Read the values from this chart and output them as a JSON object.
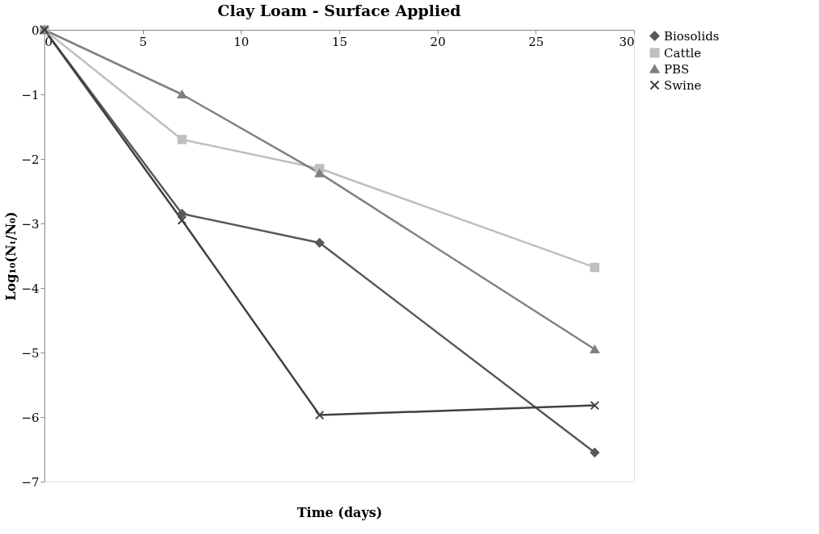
{
  "chart_data": {
    "type": "line",
    "title": "Clay Loam - Surface Applied",
    "xlabel": "Time (days)",
    "ylabel": "Log₁₀(Nₜ/N₀)",
    "x": [
      0,
      7,
      14,
      28
    ],
    "series": [
      {
        "name": "Biosolids",
        "color": "#595959",
        "marker": "diamond",
        "values": [
          0,
          -2.85,
          -3.3,
          -6.55
        ]
      },
      {
        "name": "Cattle",
        "color": "#bfbfbf",
        "marker": "square",
        "values": [
          0,
          -1.7,
          -2.15,
          -3.68
        ]
      },
      {
        "name": "PBS",
        "color": "#808080",
        "marker": "triangle",
        "values": [
          0,
          -1.0,
          -2.22,
          -4.95
        ]
      },
      {
        "name": "Swine",
        "color": "#404040",
        "marker": "cross",
        "values": [
          0,
          -2.95,
          -5.97,
          -5.82
        ]
      }
    ],
    "xlim": [
      0,
      30
    ],
    "xticks": [
      0,
      5,
      10,
      15,
      20,
      25,
      30
    ],
    "ylim": [
      -7,
      0
    ],
    "yticks": [
      0,
      -1,
      -2,
      -3,
      -4,
      -5,
      -6,
      -7
    ],
    "grid": false,
    "legend": "right",
    "line_style": "solid"
  }
}
